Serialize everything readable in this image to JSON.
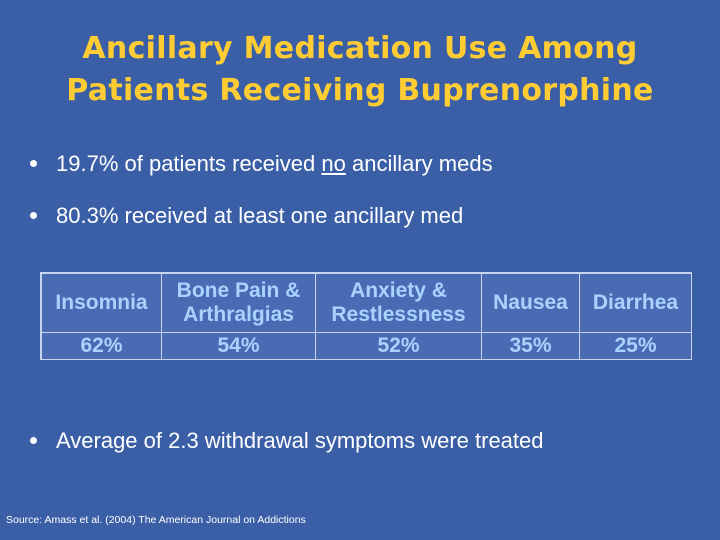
{
  "slide": {
    "title_line1": "Ancillary Medication Use Among",
    "title_line2": "Patients Receiving Buprenorphine",
    "bullets": [
      {
        "before": "19.7% of patients received ",
        "underlined": "no",
        "after": " ancillary meds"
      },
      {
        "text": "80.3% received at least one ancillary med"
      },
      {
        "text": "Average of 2.3 withdrawal symptoms were treated"
      }
    ],
    "table": {
      "headers": [
        {
          "line1": "Insomnia",
          "line2": ""
        },
        {
          "line1": "Bone Pain &",
          "line2": "Arthralgias"
        },
        {
          "line1": "Anxiety &",
          "line2": "Restlessness"
        },
        {
          "line1": "Nausea",
          "line2": ""
        },
        {
          "line1": "Diarrhea",
          "line2": ""
        }
      ],
      "values": [
        "62%",
        "54%",
        "52%",
        "35%",
        "25%"
      ]
    },
    "source": "Source: Amass et al. (2004) The American Journal on Addictions"
  },
  "colors": {
    "background": "#3b5fa6",
    "title": "#ffcc33",
    "table_text": "#a9d3ff",
    "bullet_text": "#ffffff"
  }
}
